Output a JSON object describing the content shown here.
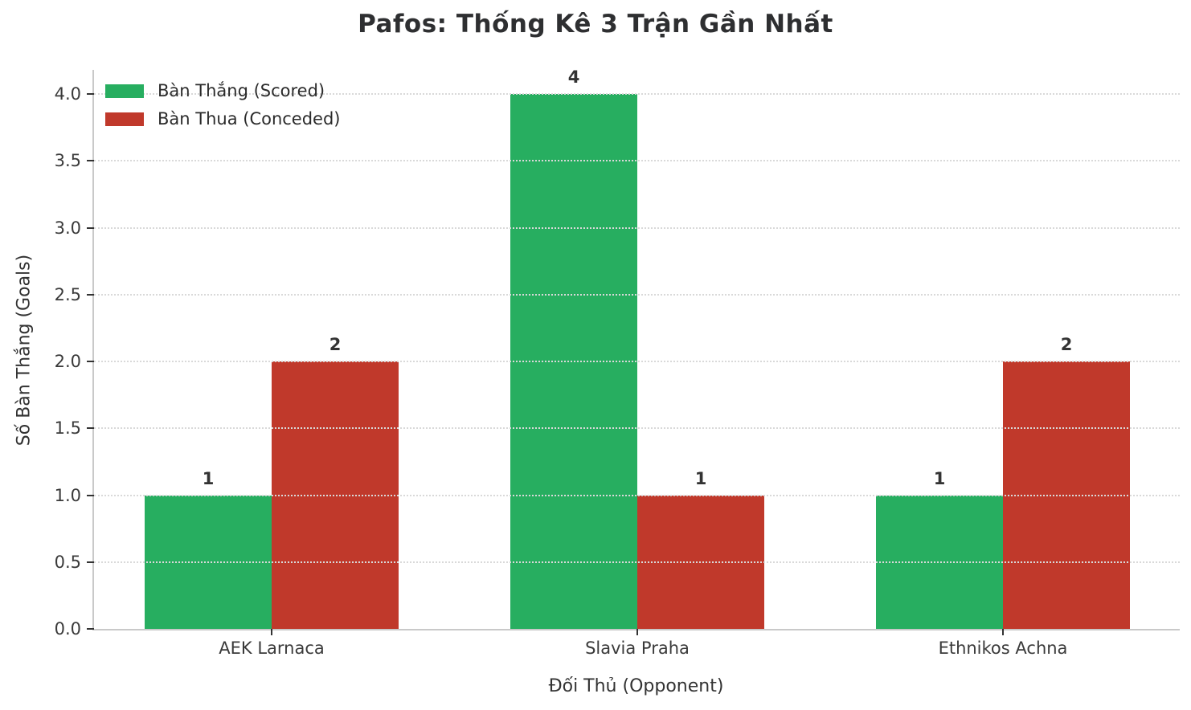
{
  "title": "Pafos: Thống Kê 3 Trận Gần Nhất",
  "chart_data": {
    "type": "bar",
    "title": "Pafos: Thống Kê 3 Trận Gần Nhất",
    "categories": [
      "AEK Larnaca",
      "Slavia Praha",
      "Ethnikos Achna"
    ],
    "series": [
      {
        "name": "Bàn Thắng (Scored)",
        "color": "#27ae60",
        "values": [
          1,
          4,
          1
        ]
      },
      {
        "name": "Bàn Thua (Conceded)",
        "color": "#c0392b",
        "values": [
          2,
          1,
          2
        ]
      }
    ],
    "xlabel": "Đối Thủ (Opponent)",
    "ylabel": "Số Bàn Thắng (Goals)",
    "ylim": [
      0.0,
      4.2
    ],
    "ytick_step": 0.5,
    "yticks": [
      "0.0",
      "0.5",
      "1.0",
      "1.5",
      "2.0",
      "2.5",
      "3.0",
      "3.5",
      "4.0"
    ],
    "grid": "horizontal-dotted, drawn over bars",
    "legend_position": "upper-left",
    "bar_value_labels": true,
    "colors": {
      "scored": "#27ae60",
      "conceded": "#c0392b",
      "grid": "#d9d9d9",
      "spine": "#c9c9c9",
      "text": "#333333"
    }
  }
}
